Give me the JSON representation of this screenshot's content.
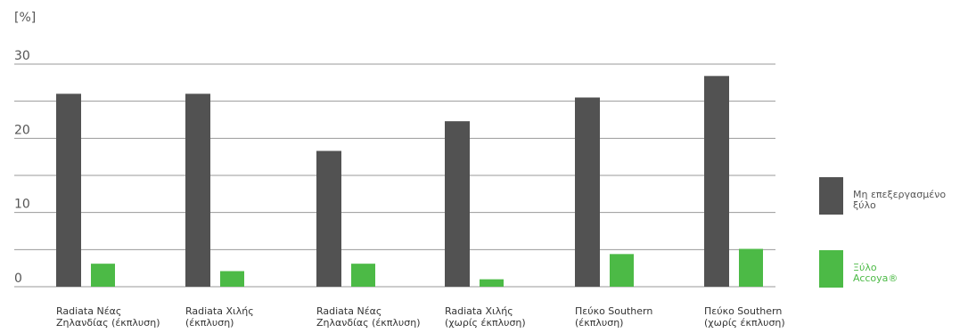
{
  "chart_data": {
    "type": "bar",
    "unit_label": "[%]",
    "categories": [
      [
        "Radiata Νέας",
        "Ζηλανδίας (έκπλυση)"
      ],
      [
        "Radiata Χιλής",
        "(έκπλυση)"
      ],
      [
        "Radiata Νέας",
        "Ζηλανδίας (έκπλυση)"
      ],
      [
        "Radiata Χιλής",
        "(χωρίς έκπλυση)"
      ],
      [
        "Πεύκο Southern",
        "(έκπλυση)"
      ],
      [
        "Πεύκο Southern",
        "(χωρίς έκπλυση)"
      ]
    ],
    "series": [
      {
        "name": [
          "Μη επεξεργασμένο",
          "ξύλο"
        ],
        "color": "#525252",
        "values": [
          26.0,
          26.0,
          18.3,
          22.3,
          25.5,
          28.4
        ]
      },
      {
        "name": [
          "Ξύλο",
          "Accoya®"
        ],
        "color": "#4cba46",
        "values": [
          3.1,
          2.1,
          3.1,
          1.0,
          4.4,
          5.1
        ]
      }
    ],
    "ylim": [
      0,
      30
    ],
    "yticks": [
      0,
      10,
      20,
      30
    ],
    "grid": true,
    "legend_position": "right"
  }
}
